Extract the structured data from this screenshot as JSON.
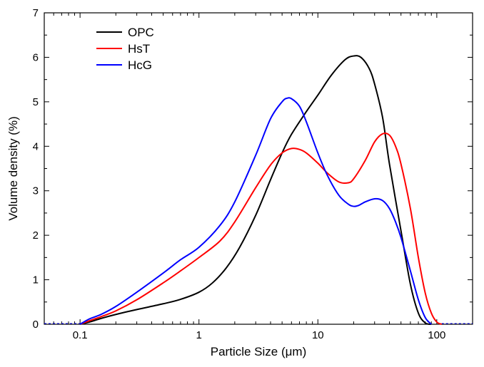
{
  "chart_data": {
    "type": "line",
    "title": "",
    "xlabel": "Particle Size (μm)",
    "ylabel": "Volume density (%)",
    "x_scale": "log",
    "xlim": [
      0.05,
      200
    ],
    "ylim": [
      0,
      7
    ],
    "x_ticks": [
      0.1,
      1,
      10,
      100
    ],
    "x_tick_labels": [
      "0.1",
      "1",
      "10",
      "100"
    ],
    "y_ticks": [
      0,
      1,
      2,
      3,
      4,
      5,
      6,
      7
    ],
    "y_tick_labels": [
      "0",
      "1",
      "2",
      "3",
      "4",
      "5",
      "6",
      "7"
    ],
    "grid": false,
    "legend_position": "top-left",
    "series": [
      {
        "name": "OPC",
        "color": "#000000",
        "x": [
          0.1,
          0.12,
          0.15,
          0.2,
          0.3,
          0.5,
          0.7,
          1.0,
          1.3,
          1.7,
          2.2,
          3.0,
          4.0,
          5.0,
          6.0,
          8.0,
          10.0,
          13.0,
          17.0,
          20.0,
          23.0,
          27.0,
          30.0,
          35.0,
          40.0,
          50.0,
          60.0,
          70.0,
          80.0,
          90.0
        ],
        "y": [
          0.0,
          0.05,
          0.13,
          0.22,
          0.33,
          0.46,
          0.56,
          0.72,
          0.93,
          1.27,
          1.73,
          2.45,
          3.25,
          3.85,
          4.27,
          4.78,
          5.15,
          5.6,
          5.95,
          6.03,
          6.0,
          5.75,
          5.4,
          4.65,
          3.6,
          2.1,
          0.9,
          0.25,
          0.03,
          0.0
        ]
      },
      {
        "name": "HsT",
        "color": "#ff0000",
        "x": [
          0.1,
          0.12,
          0.15,
          0.2,
          0.3,
          0.5,
          0.7,
          1.0,
          1.5,
          2.0,
          3.0,
          4.0,
          5.0,
          6.0,
          7.0,
          8.0,
          10.0,
          12.0,
          15.0,
          18.0,
          20.0,
          25.0,
          30.0,
          35.0,
          40.0,
          45.0,
          50.0,
          60.0,
          70.0,
          80.0,
          90.0,
          100.0,
          110.0
        ],
        "y": [
          0.0,
          0.08,
          0.17,
          0.3,
          0.55,
          0.93,
          1.2,
          1.5,
          1.87,
          2.3,
          3.07,
          3.58,
          3.85,
          3.95,
          3.93,
          3.85,
          3.62,
          3.4,
          3.2,
          3.18,
          3.27,
          3.68,
          4.1,
          4.28,
          4.25,
          4.0,
          3.6,
          2.6,
          1.5,
          0.7,
          0.25,
          0.05,
          0.0
        ]
      },
      {
        "name": "HcG",
        "color": "#0000ff",
        "x": [
          0.1,
          0.12,
          0.15,
          0.2,
          0.3,
          0.5,
          0.7,
          1.0,
          1.5,
          2.0,
          3.0,
          4.0,
          5.0,
          5.5,
          6.0,
          7.0,
          8.0,
          10.0,
          12.0,
          15.0,
          18.0,
          20.0,
          22.0,
          25.0,
          30.0,
          35.0,
          40.0,
          45.0,
          50.0,
          60.0,
          70.0,
          80.0,
          90.0
        ],
        "y": [
          0.0,
          0.12,
          0.22,
          0.4,
          0.72,
          1.15,
          1.45,
          1.73,
          2.22,
          2.75,
          3.8,
          4.62,
          5.0,
          5.08,
          5.07,
          4.9,
          4.55,
          3.85,
          3.35,
          2.9,
          2.7,
          2.65,
          2.67,
          2.75,
          2.82,
          2.78,
          2.6,
          2.3,
          1.95,
          1.2,
          0.55,
          0.15,
          0.0
        ]
      }
    ]
  }
}
